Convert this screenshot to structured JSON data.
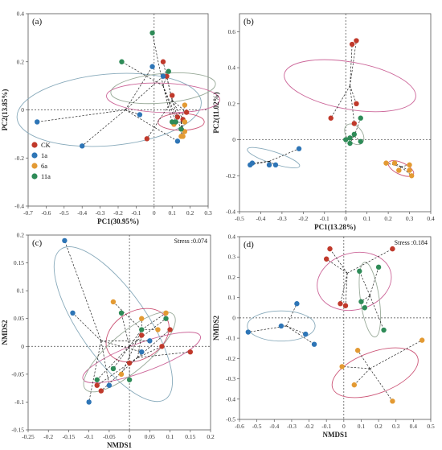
{
  "colors": {
    "CK": "#c0392b",
    "1a": "#2e75b6",
    "6a": "#e39a33",
    "11a": "#2e8b57",
    "ell_CK": "#cc6699",
    "ell_1a": "#88aabb",
    "ell_6a": "#cc5577",
    "ell_11a": "#99aa99"
  },
  "legend": [
    {
      "name": "CK",
      "color": "#c0392b"
    },
    {
      "name": "1a",
      "color": "#2e75b6"
    },
    {
      "name": "6a",
      "color": "#e39a33"
    },
    {
      "name": "11a",
      "color": "#2e8b57"
    }
  ],
  "chart_data": [
    {
      "type": "scatter",
      "panel_label": "(a)",
      "xlabel": "PC1(30.95%)",
      "ylabel": "PC2(13.85%)",
      "xlim": [
        -0.7,
        0.3
      ],
      "ylim": [
        -0.4,
        0.4
      ],
      "xticks": [
        -0.7,
        -0.6,
        -0.5,
        -0.4,
        -0.3,
        -0.2,
        -0.1,
        0,
        0.1,
        0.2,
        0.3
      ],
      "yticks": [
        -0.4,
        -0.2,
        0,
        0.2,
        0.4
      ],
      "stress": "",
      "groups": [
        {
          "name": "CK",
          "points": [
            [
              0.05,
              0.2
            ],
            [
              0.07,
              0.14
            ],
            [
              0.1,
              0.06
            ],
            [
              0.13,
              -0.03
            ],
            [
              -0.04,
              -0.12
            ],
            [
              0.16,
              -0.04
            ],
            [
              0.18,
              -0.01
            ]
          ],
          "centroid": [
            0.1,
            0.04
          ],
          "ellipse": {
            "cx": 0.05,
            "cy": 0.05,
            "rx": 0.07,
            "ry": 0.27,
            "angle": 88
          }
        },
        {
          "name": "1a",
          "points": [
            [
              -0.65,
              -0.05
            ],
            [
              -0.4,
              -0.15
            ],
            [
              -0.08,
              -0.02
            ],
            [
              -0.01,
              0.18
            ],
            [
              0.13,
              -0.13
            ],
            [
              0.05,
              0.14
            ]
          ],
          "centroid": [
            -0.16,
            0.0
          ],
          "ellipse": {
            "cx": -0.25,
            "cy": 0.0,
            "rx": 0.44,
            "ry": 0.17,
            "angle": 5
          }
        },
        {
          "name": "6a",
          "points": [
            [
              0.11,
              -0.06
            ],
            [
              0.15,
              -0.11
            ],
            [
              0.17,
              0.02
            ],
            [
              0.17,
              -0.05
            ],
            [
              0.17,
              -0.09
            ],
            [
              0.16,
              -0.11
            ]
          ],
          "centroid": [
            0.15,
            -0.05
          ],
          "ellipse": {
            "cx": 0.15,
            "cy": -0.05,
            "rx": 0.04,
            "ry": 0.11,
            "angle": 90
          }
        },
        {
          "name": "11a",
          "points": [
            [
              -0.18,
              0.2
            ],
            [
              -0.01,
              0.32
            ],
            [
              0.08,
              0.16
            ],
            [
              0.1,
              -0.05
            ],
            [
              0.12,
              -0.05
            ],
            [
              0.15,
              -0.08
            ]
          ],
          "centroid": [
            0.05,
            0.1
          ],
          "ellipse": {
            "cx": 0.05,
            "cy": 0.09,
            "rx": 0.07,
            "ry": 0.25,
            "angle": 95
          }
        }
      ]
    },
    {
      "type": "scatter",
      "panel_label": "(b)",
      "xlabel": "PC1(13.28%)",
      "ylabel": "PC2(11.02%)",
      "xlim": [
        -0.5,
        0.4
      ],
      "ylim": [
        -0.4,
        0.7
      ],
      "xticks": [
        -0.5,
        -0.4,
        -0.3,
        -0.2,
        -0.1,
        0,
        0.1,
        0.2,
        0.3,
        0.4
      ],
      "yticks": [
        -0.4,
        -0.2,
        0,
        0.2,
        0.4,
        0.6
      ],
      "stress": "",
      "groups": [
        {
          "name": "CK",
          "points": [
            [
              0.03,
              0.53
            ],
            [
              0.05,
              0.55
            ],
            [
              0.05,
              0.2
            ],
            [
              -0.07,
              0.12
            ],
            [
              0.04,
              0.09
            ]
          ],
          "centroid": [
            0.02,
            0.3
          ],
          "ellipse": {
            "cx": 0.02,
            "cy": 0.3,
            "rx": 0.12,
            "ry": 0.34,
            "angle": 80
          }
        },
        {
          "name": "1a",
          "points": [
            [
              -0.45,
              -0.14
            ],
            [
              -0.44,
              -0.13
            ],
            [
              -0.36,
              -0.14
            ],
            [
              -0.33,
              -0.14
            ],
            [
              -0.22,
              -0.05
            ]
          ],
          "centroid": [
            -0.36,
            -0.12
          ],
          "ellipse": {
            "cx": -0.34,
            "cy": -0.1,
            "rx": 0.14,
            "ry": 0.03,
            "angle": -18
          }
        },
        {
          "name": "6a",
          "points": [
            [
              0.19,
              -0.13
            ],
            [
              0.23,
              -0.13
            ],
            [
              0.25,
              -0.17
            ],
            [
              0.3,
              -0.17
            ],
            [
              0.31,
              -0.2
            ],
            [
              0.3,
              -0.14
            ]
          ],
          "centroid": [
            0.26,
            -0.15
          ],
          "ellipse": {
            "cx": 0.26,
            "cy": -0.16,
            "rx": 0.07,
            "ry": 0.03,
            "angle": -25
          }
        },
        {
          "name": "11a",
          "points": [
            [
              0.07,
              0.12
            ],
            [
              0.0,
              0.0
            ],
            [
              0.02,
              0.01
            ],
            [
              0.02,
              -0.02
            ],
            [
              0.07,
              -0.01
            ],
            [
              0.04,
              0.03
            ]
          ],
          "centroid": [
            0.04,
            0.02
          ],
          "ellipse": {
            "cx": 0.04,
            "cy": 0.03,
            "rx": 0.04,
            "ry": 0.06,
            "angle": 40
          }
        }
      ]
    },
    {
      "type": "scatter",
      "panel_label": "(c)",
      "xlabel": "NMDS1",
      "ylabel": "NMDS2",
      "xlim": [
        -0.25,
        0.2
      ],
      "ylim": [
        -0.15,
        0.2
      ],
      "xticks": [
        -0.25,
        -0.2,
        -0.15,
        -0.1,
        -0.05,
        0,
        0.05,
        0.1,
        0.15,
        0.2
      ],
      "yticks": [
        -0.15,
        -0.1,
        -0.05,
        0,
        0.05,
        0.1,
        0.15,
        0.2
      ],
      "stress": "Stress :0.074",
      "groups": [
        {
          "name": "CK",
          "points": [
            [
              0.1,
              0.03
            ],
            [
              0.03,
              0.02
            ],
            [
              -0.08,
              -0.07
            ],
            [
              -0.07,
              -0.08
            ],
            [
              0.0,
              -0.03
            ],
            [
              0.08,
              0.0
            ],
            [
              0.15,
              -0.01
            ]
          ],
          "centroid": [
            0.02,
            -0.02
          ],
          "ellipse": {
            "cx": 0.03,
            "cy": -0.02,
            "rx": 0.13,
            "ry": 0.03,
            "angle": 20
          }
        },
        {
          "name": "1a",
          "points": [
            [
              -0.16,
              0.19
            ],
            [
              -0.14,
              0.06
            ],
            [
              -0.1,
              -0.1
            ],
            [
              -0.05,
              -0.07
            ],
            [
              0.05,
              0.01
            ],
            [
              0.03,
              -0.01
            ]
          ],
          "centroid": [
            -0.07,
            0.01
          ],
          "ellipse": {
            "cx": -0.04,
            "cy": 0.04,
            "rx": 0.19,
            "ry": 0.07,
            "angle": -55
          }
        },
        {
          "name": "6a",
          "points": [
            [
              -0.04,
              0.08
            ],
            [
              0.03,
              0.05
            ],
            [
              0.09,
              0.06
            ],
            [
              0.07,
              0.03
            ],
            [
              -0.02,
              -0.05
            ]
          ],
          "centroid": [
            0.03,
            0.03
          ],
          "ellipse": {
            "cx": 0.02,
            "cy": 0.02,
            "rx": 0.07,
            "ry": 0.05,
            "angle": 30
          }
        },
        {
          "name": "11a",
          "points": [
            [
              -0.02,
              0.06
            ],
            [
              0.09,
              0.05
            ],
            [
              0.03,
              0.03
            ],
            [
              -0.08,
              -0.06
            ],
            [
              0.0,
              -0.06
            ],
            [
              -0.04,
              -0.04
            ]
          ],
          "centroid": [
            0.0,
            0.0
          ],
          "ellipse": {
            "cx": 0.0,
            "cy": -0.01,
            "rx": 0.12,
            "ry": 0.04,
            "angle": 40
          }
        }
      ]
    },
    {
      "type": "scatter",
      "panel_label": "(d)",
      "xlabel": "NMDS1",
      "ylabel": "NMDS2",
      "xlim": [
        -0.6,
        0.5
      ],
      "ylim": [
        -0.5,
        0.4
      ],
      "xticks": [
        -0.6,
        -0.5,
        -0.4,
        -0.3,
        -0.2,
        -0.1,
        0,
        0.1,
        0.2,
        0.3,
        0.4,
        0.5
      ],
      "yticks": [
        -0.5,
        -0.4,
        -0.3,
        -0.2,
        -0.1,
        0,
        0.1,
        0.2,
        0.3,
        0.4
      ],
      "stress": "Stress :0.184",
      "groups": [
        {
          "name": "CK",
          "points": [
            [
              -0.1,
              0.29
            ],
            [
              -0.08,
              0.34
            ],
            [
              -0.02,
              0.07
            ],
            [
              0.01,
              0.06
            ],
            [
              0.28,
              0.34
            ]
          ],
          "centroid": [
            0.02,
            0.22
          ],
          "ellipse": {
            "cx": 0.06,
            "cy": 0.18,
            "rx": 0.2,
            "ry": 0.15,
            "angle": 15
          }
        },
        {
          "name": "1a",
          "points": [
            [
              -0.55,
              -0.07
            ],
            [
              -0.36,
              -0.04
            ],
            [
              -0.27,
              0.07
            ],
            [
              -0.22,
              -0.08
            ],
            [
              -0.17,
              -0.13
            ]
          ],
          "centroid": [
            -0.33,
            -0.04
          ],
          "ellipse": {
            "cx": -0.36,
            "cy": -0.04,
            "rx": 0.18,
            "ry": 0.08,
            "angle": 0
          }
        },
        {
          "name": "6a",
          "points": [
            [
              -0.01,
              -0.24
            ],
            [
              0.08,
              -0.16
            ],
            [
              0.28,
              -0.41
            ],
            [
              0.06,
              -0.33
            ],
            [
              0.45,
              -0.11
            ]
          ],
          "centroid": [
            0.15,
            -0.25
          ],
          "ellipse": {
            "cx": 0.18,
            "cy": -0.27,
            "rx": 0.24,
            "ry": 0.11,
            "angle": 20
          }
        },
        {
          "name": "11a",
          "points": [
            [
              0.09,
              0.23
            ],
            [
              0.2,
              0.25
            ],
            [
              0.23,
              -0.06
            ],
            [
              0.1,
              0.08
            ],
            [
              0.12,
              0.05
            ]
          ],
          "centroid": [
            0.15,
            0.11
          ],
          "ellipse": {
            "cx": 0.15,
            "cy": 0.09,
            "rx": 0.2,
            "ry": 0.05,
            "angle": -82
          }
        }
      ]
    }
  ]
}
